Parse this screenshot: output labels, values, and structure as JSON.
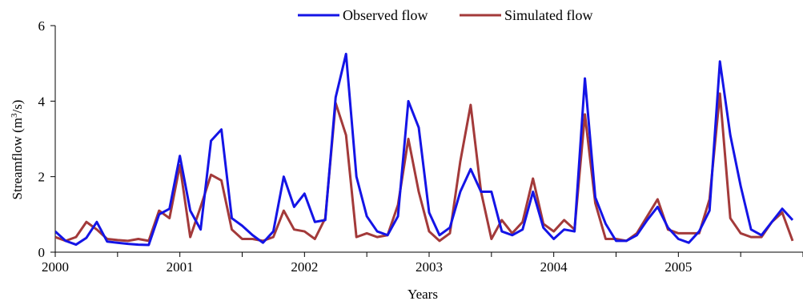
{
  "chart_data": {
    "type": "line",
    "xlabel": "Years",
    "ylabel_main": "Streamflow (m",
    "ylabel_sup": "3",
    "ylabel_tail": "/s)",
    "xlim": [
      0,
      72
    ],
    "ylim": [
      0,
      6
    ],
    "y_ticks": [
      0,
      2,
      4,
      6
    ],
    "x_tick_labels": [
      "2000",
      "2001",
      "2002",
      "2003",
      "2004",
      "2005"
    ],
    "x_tick_positions": [
      0,
      12,
      24,
      36,
      48,
      60
    ],
    "legend_position": "top-center",
    "grid": false,
    "series": [
      {
        "name": "Observed flow",
        "color": "#1414e6",
        "values": [
          0.55,
          0.3,
          0.2,
          0.38,
          0.8,
          0.28,
          0.25,
          0.22,
          0.2,
          0.19,
          1.0,
          1.15,
          2.55,
          1.1,
          0.6,
          2.95,
          3.25,
          0.9,
          0.7,
          0.45,
          0.25,
          0.55,
          2.0,
          1.2,
          1.55,
          0.8,
          0.85,
          4.1,
          5.25,
          2.0,
          0.95,
          0.55,
          0.45,
          0.95,
          4.0,
          3.3,
          1.05,
          0.45,
          0.65,
          1.6,
          2.2,
          1.6,
          1.6,
          0.55,
          0.45,
          0.6,
          1.6,
          0.65,
          0.35,
          0.6,
          0.55,
          4.6,
          1.45,
          0.75,
          0.3,
          0.3,
          0.45,
          0.85,
          1.2,
          0.65,
          0.35,
          0.25,
          0.55,
          1.1,
          5.05,
          3.1,
          1.75,
          0.6,
          0.45,
          0.8,
          1.15,
          0.85
        ]
      },
      {
        "name": "Simulated flow",
        "color": "#a33a3a",
        "values": [
          0.4,
          0.3,
          0.4,
          0.8,
          0.6,
          0.35,
          0.32,
          0.3,
          0.35,
          0.3,
          1.1,
          0.9,
          2.3,
          0.4,
          1.2,
          2.05,
          1.9,
          0.6,
          0.35,
          0.35,
          0.3,
          0.4,
          1.1,
          0.6,
          0.55,
          0.35,
          0.9,
          3.95,
          3.1,
          0.4,
          0.5,
          0.4,
          0.45,
          1.25,
          3.0,
          1.6,
          0.55,
          0.3,
          0.5,
          2.4,
          3.9,
          1.6,
          0.35,
          0.85,
          0.5,
          0.8,
          1.95,
          0.75,
          0.55,
          0.85,
          0.6,
          3.65,
          1.3,
          0.35,
          0.35,
          0.3,
          0.5,
          0.95,
          1.4,
          0.6,
          0.5,
          0.5,
          0.5,
          1.4,
          4.2,
          0.9,
          0.5,
          0.4,
          0.4,
          0.8,
          1.05,
          0.3
        ]
      }
    ]
  }
}
